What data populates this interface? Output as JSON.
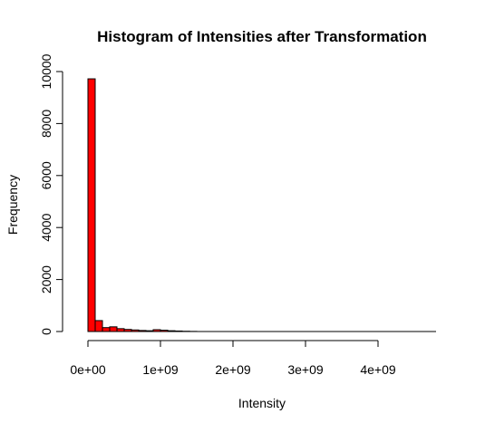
{
  "chart_data": {
    "type": "bar",
    "title": "Histogram of Intensities after Transformation",
    "xlabel": "Intensity",
    "ylabel": "Frequency",
    "bar_color": "#ff0000",
    "bin_width": 100000000,
    "x_range": [
      0,
      4800000000
    ],
    "xlim": [
      0,
      4800000000
    ],
    "ylim": [
      0,
      10000
    ],
    "x_ticks": [
      {
        "value": 0,
        "label": "0e+00"
      },
      {
        "value": 1000000000,
        "label": "1e+09"
      },
      {
        "value": 2000000000,
        "label": "2e+09"
      },
      {
        "value": 3000000000,
        "label": "3e+09"
      },
      {
        "value": 4000000000,
        "label": "4e+09"
      }
    ],
    "y_ticks": [
      {
        "value": 0,
        "label": "0"
      },
      {
        "value": 2000,
        "label": "2000"
      },
      {
        "value": 4000,
        "label": "4000"
      },
      {
        "value": 6000,
        "label": "6000"
      },
      {
        "value": 8000,
        "label": "8000"
      },
      {
        "value": 10000,
        "label": "10000"
      }
    ],
    "bins": [
      {
        "x0": 0,
        "x1": 100000000,
        "count": 9720
      },
      {
        "x0": 100000000,
        "x1": 200000000,
        "count": 420
      },
      {
        "x0": 200000000,
        "x1": 300000000,
        "count": 150
      },
      {
        "x0": 300000000,
        "x1": 400000000,
        "count": 180
      },
      {
        "x0": 400000000,
        "x1": 500000000,
        "count": 110
      },
      {
        "x0": 500000000,
        "x1": 600000000,
        "count": 80
      },
      {
        "x0": 600000000,
        "x1": 700000000,
        "count": 60
      },
      {
        "x0": 700000000,
        "x1": 800000000,
        "count": 40
      },
      {
        "x0": 800000000,
        "x1": 900000000,
        "count": 30
      },
      {
        "x0": 900000000,
        "x1": 1000000000,
        "count": 70
      },
      {
        "x0": 1000000000,
        "x1": 1100000000,
        "count": 50
      },
      {
        "x0": 1100000000,
        "x1": 1200000000,
        "count": 30
      },
      {
        "x0": 1200000000,
        "x1": 1300000000,
        "count": 20
      },
      {
        "x0": 1300000000,
        "x1": 1400000000,
        "count": 10
      },
      {
        "x0": 1400000000,
        "x1": 1500000000,
        "count": 5
      }
    ]
  }
}
